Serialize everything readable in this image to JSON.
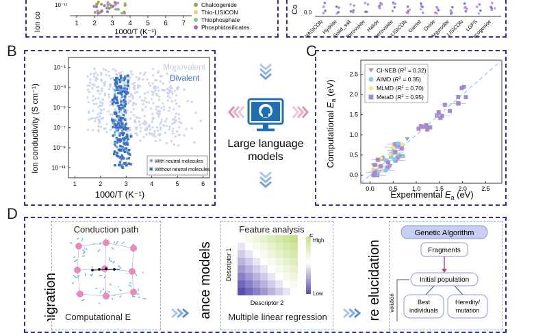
{
  "panels": {
    "A": {
      "ylabel_fragment": "Ion co",
      "y_tick": "10⁻¹¹",
      "x_ticks": [
        "1",
        "2",
        "3",
        "4",
        "5",
        "6",
        "7"
      ],
      "xlabel": "1000/T (K⁻¹)",
      "legend": [
        {
          "label": "Chalcogenide",
          "color": "#9aa43a"
        },
        {
          "label": "Thio-LISICON",
          "color": "#e6d36a"
        },
        {
          "label": "Thiophosphate",
          "color": "#7fc67f"
        },
        {
          "label": "Phosphidosilicates",
          "color": "#9b6fc6"
        }
      ],
      "right_ylabel_fragment": "Co",
      "right_y_tick": "0.0",
      "right_categories": [
        "NASICON",
        "Hydride",
        "Solid_salt",
        "Perovskite",
        "Halide",
        "Antiperovskite",
        "Thio-LISICON",
        "Garnet",
        "Oxide",
        "Argyrodite",
        "LISICON",
        "LGPS",
        "Chalcogenide"
      ]
    },
    "B": {
      "letter": "B",
      "ylabel": "Ion conductivity (S cm⁻¹)",
      "xlabel": "1000/T (K⁻¹)",
      "y_ticks": [
        "10⁻¹",
        "10⁻³",
        "10⁻⁵",
        "10⁻⁷",
        "10⁻⁹",
        "10⁻¹¹"
      ],
      "x_ticks": [
        "1",
        "2",
        "3",
        "4",
        "5",
        "6"
      ],
      "label_monovalent": "Monovalent",
      "label_divalent": "Divalent",
      "legend": [
        "With neutral molecules",
        "Without neutral molecules"
      ],
      "colors": {
        "monovalent": "#c9d3ee",
        "divalent": "#3f72c4",
        "with_neutral": "#6ea7d8"
      }
    },
    "center": {
      "caption_line1": "Large language",
      "caption_line2": "models",
      "monitor_color": "#1f6fb5",
      "arrow_color": "#5b8fd6",
      "side_arrow_color": "#e58fb0"
    },
    "C": {
      "letter": "C",
      "ylabel_prefix": "Computational ",
      "xlabel_prefix": "Experimental ",
      "ea_symbol": "E",
      "ea_subscript": "a",
      "unit": " (eV)",
      "y_ticks": [
        "0.0",
        "0.5",
        "1.0",
        "1.5",
        "2.0",
        "2.5"
      ],
      "x_ticks": [
        "0.0",
        "0.5",
        "1.0",
        "1.5",
        "2.0",
        "2.5"
      ],
      "legend": [
        {
          "method": "CI-NEB",
          "r2": "= 0.32",
          "color": "#9b9fd0",
          "shape": "triangle"
        },
        {
          "method": "AIMD",
          "r2": "= 0.35",
          "color": "#7fcde8",
          "shape": "circle"
        },
        {
          "method": "MLMD",
          "r2": "= 0.70",
          "color": "#f3ea80",
          "shape": "diamond"
        },
        {
          "method": "MetaD",
          "r2": "= 0.95",
          "color": "#a58ad0",
          "shape": "square"
        }
      ],
      "r2_symbol": "R",
      "diagonal_color": "#8fc7e8"
    },
    "D": {
      "letter": "D",
      "left_vertical": "migration",
      "conduction_title": "Conduction path",
      "computational_caption": "Computational E",
      "middle_vertical": "ance models",
      "feature_title": "Feature analysis",
      "heatmap_legend_symbol": "E",
      "heatmap_high": "High",
      "heatmap_low": "Low",
      "descriptor_y": "Descriptor 1",
      "descriptor_x": "Descriptor 2",
      "regression_caption": "Multiple linear regression",
      "right_vertical": "re elucidation",
      "genetic_title": "Genetic Algorithm",
      "fragments": "Fragments",
      "initial_population": "Initial population",
      "best_individuals": "Best individuals",
      "heredity": "Heredity/ mutation",
      "evolution": "volution"
    }
  }
}
